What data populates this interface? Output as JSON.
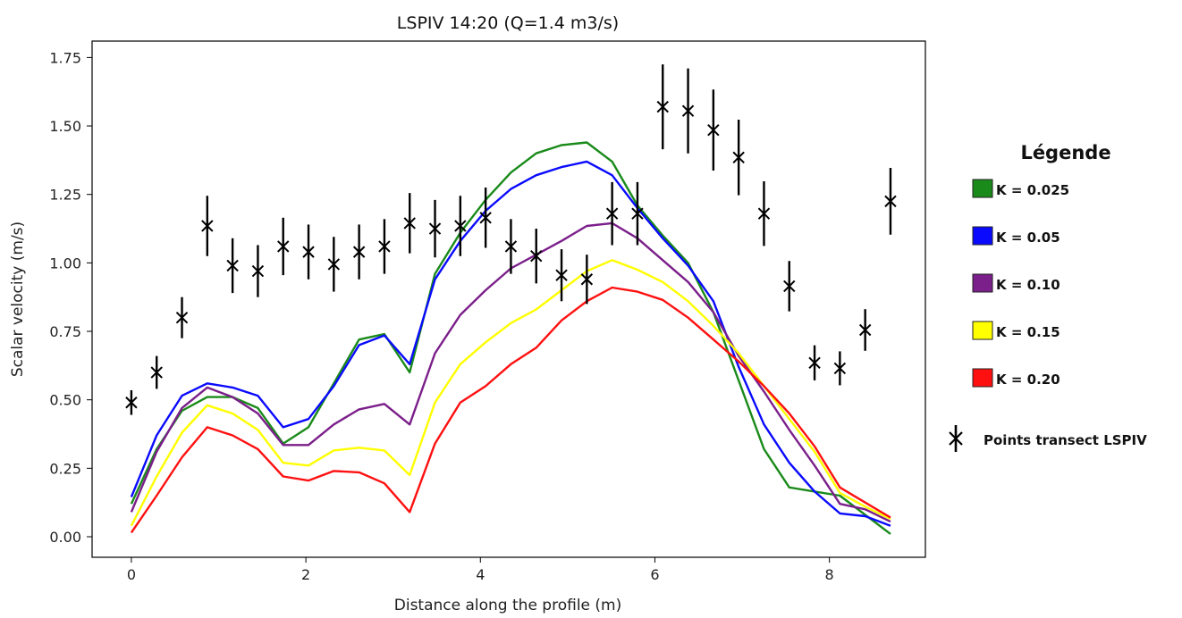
{
  "chart_data": {
    "type": "line",
    "title": "LSPIV 14:20 (Q=1.4 m3/s)",
    "xlabel": "Distance along the profile (m)",
    "ylabel": "Scalar velocity (m/s)",
    "xlim": [
      -0.45,
      9.1
    ],
    "ylim": [
      -0.075,
      1.81
    ],
    "xticks": [
      0,
      2,
      4,
      6,
      8
    ],
    "xtick_labels": [
      "0",
      "2",
      "4",
      "6",
      "8"
    ],
    "yticks": [
      0,
      0.25,
      0.5,
      0.75,
      1.0,
      1.25,
      1.5,
      1.75
    ],
    "ytick_labels": [
      "0.00",
      "0.25",
      "0.50",
      "0.75",
      "1.00",
      "1.25",
      "1.50",
      "1.75"
    ],
    "grid": false,
    "legend": {
      "title": "Légende",
      "position": "outside-right",
      "point_label": "Points transect LSPIV"
    },
    "x": [
      0,
      0.29,
      0.58,
      0.87,
      1.16,
      1.45,
      1.74,
      2.03,
      2.32,
      2.61,
      2.9,
      3.19,
      3.48,
      3.77,
      4.06,
      4.35,
      4.64,
      4.93,
      5.22,
      5.51,
      5.8,
      6.09,
      6.38,
      6.67,
      6.96,
      7.25,
      7.54,
      7.83,
      8.12,
      8.41,
      8.7
    ],
    "series": [
      {
        "name": "K = 0.025",
        "color": "#1a8a1a",
        "values": [
          0.12,
          0.32,
          0.46,
          0.51,
          0.51,
          0.47,
          0.34,
          0.4,
          0.56,
          0.72,
          0.74,
          0.6,
          0.96,
          1.11,
          1.23,
          1.33,
          1.4,
          1.43,
          1.44,
          1.37,
          1.21,
          1.1,
          1.0,
          0.82,
          0.57,
          0.32,
          0.18,
          0.165,
          0.15,
          0.08,
          0.01
        ]
      },
      {
        "name": "K = 0.05",
        "color": "#0a0aff",
        "values": [
          0.145,
          0.37,
          0.515,
          0.56,
          0.545,
          0.515,
          0.4,
          0.43,
          0.55,
          0.7,
          0.735,
          0.63,
          0.94,
          1.08,
          1.19,
          1.27,
          1.32,
          1.35,
          1.37,
          1.32,
          1.2,
          1.09,
          0.99,
          0.86,
          0.62,
          0.41,
          0.27,
          0.165,
          0.085,
          0.075,
          0.04
        ]
      },
      {
        "name": "K = 0.10",
        "color": "#7b1f8a",
        "values": [
          0.09,
          0.31,
          0.47,
          0.545,
          0.51,
          0.45,
          0.335,
          0.335,
          0.41,
          0.465,
          0.485,
          0.41,
          0.67,
          0.81,
          0.9,
          0.98,
          1.03,
          1.08,
          1.135,
          1.145,
          1.09,
          1.01,
          0.93,
          0.82,
          0.66,
          0.53,
          0.39,
          0.26,
          0.12,
          0.1,
          0.055
        ]
      },
      {
        "name": "K = 0.15",
        "color": "#ffff00",
        "values": [
          0.04,
          0.22,
          0.38,
          0.48,
          0.45,
          0.39,
          0.27,
          0.26,
          0.315,
          0.325,
          0.315,
          0.225,
          0.49,
          0.63,
          0.71,
          0.78,
          0.83,
          0.9,
          0.97,
          1.01,
          0.975,
          0.93,
          0.86,
          0.77,
          0.67,
          0.55,
          0.43,
          0.31,
          0.16,
          0.11,
          0.065
        ]
      },
      {
        "name": "K = 0.20",
        "color": "#ff1010",
        "values": [
          0.015,
          0.15,
          0.29,
          0.4,
          0.37,
          0.32,
          0.22,
          0.205,
          0.24,
          0.235,
          0.195,
          0.09,
          0.34,
          0.49,
          0.55,
          0.63,
          0.69,
          0.79,
          0.86,
          0.91,
          0.895,
          0.865,
          0.8,
          0.72,
          0.64,
          0.55,
          0.45,
          0.33,
          0.18,
          0.125,
          0.07
        ]
      }
    ],
    "points": {
      "name": "Points transect LSPIV",
      "x": [
        0,
        0.29,
        0.58,
        0.87,
        1.16,
        1.45,
        1.74,
        2.03,
        2.32,
        2.61,
        2.9,
        3.19,
        3.48,
        3.77,
        4.06,
        4.35,
        4.64,
        4.93,
        5.22,
        5.51,
        5.8,
        6.09,
        6.38,
        6.67,
        6.96,
        7.25,
        7.54,
        7.83,
        8.12,
        8.41,
        8.7
      ],
      "y": [
        0.49,
        0.6,
        0.8,
        1.135,
        0.99,
        0.97,
        1.06,
        1.04,
        0.995,
        1.04,
        1.06,
        1.145,
        1.125,
        1.135,
        1.165,
        1.06,
        1.025,
        0.955,
        0.94,
        1.18,
        1.18,
        1.57,
        1.555,
        1.485,
        1.385,
        1.18,
        0.915,
        0.635,
        0.615,
        0.755,
        1.225
      ],
      "err": [
        0.045,
        0.06,
        0.075,
        0.11,
        0.1,
        0.095,
        0.105,
        0.1,
        0.1,
        0.1,
        0.1,
        0.11,
        0.105,
        0.11,
        0.11,
        0.1,
        0.1,
        0.095,
        0.09,
        0.115,
        0.115,
        0.155,
        0.155,
        0.148,
        0.138,
        0.118,
        0.092,
        0.064,
        0.062,
        0.076,
        0.122
      ]
    }
  }
}
